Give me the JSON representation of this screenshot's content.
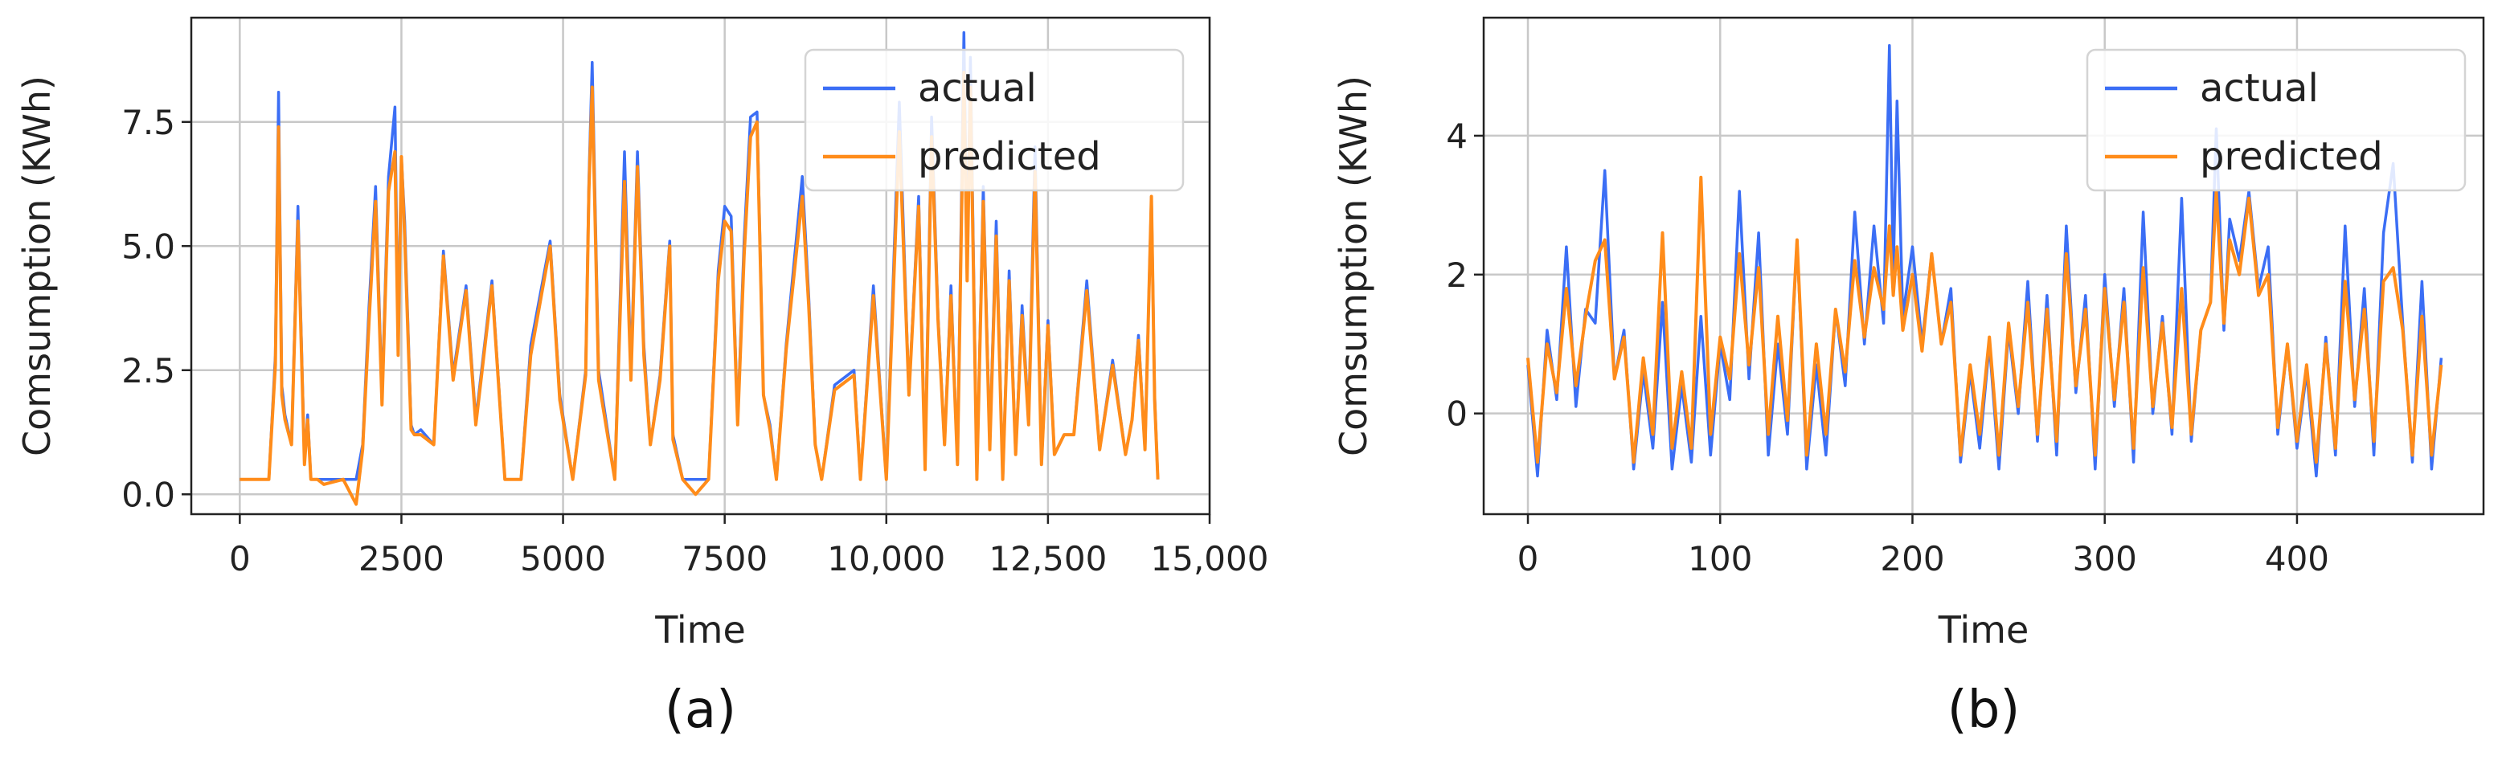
{
  "chart_data": [
    {
      "id": "a",
      "type": "line",
      "panel_label": "(a)",
      "title": "",
      "xlabel": "Time",
      "ylabel": "Comsumption (KWh)",
      "xlim": [
        -750,
        15000
      ],
      "ylim": [
        -0.4,
        9.6
      ],
      "xticks": [
        0,
        2500,
        5000,
        7500,
        10000,
        12500,
        15000
      ],
      "xtick_labels": [
        "0",
        "2500",
        "5000",
        "7500",
        "10,000",
        "12,500",
        "15,000"
      ],
      "yticks": [
        0.0,
        2.5,
        5.0,
        7.5
      ],
      "ytick_labels": [
        "0.0",
        "2.5",
        "5.0",
        "7.5"
      ],
      "grid": true,
      "legend_position": "top-right",
      "series": [
        {
          "name": "actual",
          "color": "#3b6ef5",
          "x": [
            0,
            450,
            550,
            600,
            650,
            700,
            800,
            900,
            1000,
            1050,
            1100,
            1200,
            1300,
            1600,
            1800,
            1900,
            2000,
            2100,
            2200,
            2300,
            2400,
            2450,
            2500,
            2550,
            2650,
            2700,
            2800,
            3000,
            3150,
            3300,
            3500,
            3650,
            3900,
            4100,
            4350,
            4500,
            4800,
            4950,
            5150,
            5350,
            5400,
            5450,
            5550,
            5800,
            5950,
            6050,
            6150,
            6250,
            6350,
            6500,
            6650,
            6700,
            6850,
            7050,
            7250,
            7400,
            7500,
            7600,
            7700,
            7800,
            7900,
            8000,
            8100,
            8200,
            8300,
            8450,
            8700,
            8800,
            8900,
            9000,
            9200,
            9500,
            9600,
            9800,
            10000,
            10200,
            10350,
            10500,
            10600,
            10700,
            10800,
            10900,
            11000,
            11100,
            11200,
            11250,
            11300,
            11400,
            11500,
            11600,
            11700,
            11800,
            11900,
            12000,
            12100,
            12200,
            12300,
            12400,
            12500,
            12600,
            12750,
            12900,
            13100,
            13300,
            13500,
            13700,
            13800,
            13900,
            14000,
            14100,
            14150,
            14200
          ],
          "y": [
            0.3,
            0.3,
            2.8,
            8.1,
            2.2,
            1.6,
            1.0,
            5.8,
            0.7,
            1.6,
            0.3,
            0.3,
            0.3,
            0.3,
            0.3,
            1.0,
            3.8,
            6.2,
            2.0,
            6.4,
            7.8,
            3.0,
            6.8,
            5.5,
            1.4,
            1.2,
            1.3,
            1.0,
            4.9,
            2.4,
            4.2,
            1.5,
            4.3,
            0.3,
            0.3,
            3.0,
            5.1,
            2.0,
            0.3,
            2.5,
            6.3,
            8.7,
            2.5,
            0.3,
            6.9,
            2.5,
            6.9,
            3.0,
            1.0,
            2.4,
            5.1,
            1.2,
            0.3,
            0.3,
            0.3,
            4.5,
            5.8,
            5.6,
            1.5,
            5.1,
            7.6,
            7.7,
            2.0,
            1.4,
            0.3,
            3.0,
            6.4,
            4.0,
            1.0,
            0.3,
            2.2,
            2.5,
            0.3,
            4.2,
            0.3,
            7.9,
            2.0,
            6.0,
            0.6,
            7.6,
            3.6,
            1.0,
            4.2,
            0.6,
            9.3,
            4.5,
            8.8,
            0.3,
            6.2,
            1.0,
            5.5,
            0.3,
            4.5,
            0.8,
            3.8,
            1.5,
            7.0,
            0.6,
            3.5,
            0.8,
            1.2,
            1.2,
            4.3,
            0.9,
            2.7,
            0.8,
            1.5,
            3.2,
            0.9,
            6.0,
            2.0,
            0.3
          ],
          "note": "approximate trace read off the figure"
        },
        {
          "name": "predicted",
          "color": "#ff8c1a",
          "x": [
            0,
            450,
            550,
            600,
            650,
            700,
            800,
            900,
            1000,
            1050,
            1100,
            1200,
            1300,
            1600,
            1800,
            1900,
            2000,
            2100,
            2200,
            2300,
            2400,
            2450,
            2500,
            2550,
            2650,
            2700,
            2800,
            3000,
            3150,
            3300,
            3500,
            3650,
            3900,
            4100,
            4350,
            4500,
            4800,
            4950,
            5150,
            5350,
            5400,
            5450,
            5550,
            5800,
            5950,
            6050,
            6150,
            6250,
            6350,
            6500,
            6650,
            6700,
            6850,
            7050,
            7250,
            7400,
            7500,
            7600,
            7700,
            7800,
            7900,
            8000,
            8100,
            8200,
            8300,
            8450,
            8700,
            8800,
            8900,
            9000,
            9200,
            9500,
            9600,
            9800,
            10000,
            10200,
            10350,
            10500,
            10600,
            10700,
            10800,
            10900,
            11000,
            11100,
            11200,
            11250,
            11300,
            11400,
            11500,
            11600,
            11700,
            11800,
            11900,
            12000,
            12100,
            12200,
            12300,
            12400,
            12500,
            12600,
            12750,
            12900,
            13100,
            13300,
            13500,
            13700,
            13800,
            13900,
            14000,
            14100,
            14150,
            14200
          ],
          "y": [
            0.3,
            0.3,
            2.6,
            7.4,
            2.0,
            1.5,
            1.0,
            5.5,
            0.6,
            1.5,
            0.3,
            0.3,
            0.2,
            0.3,
            -0.2,
            0.9,
            3.5,
            5.9,
            1.8,
            6.1,
            6.9,
            2.8,
            6.8,
            5.2,
            1.3,
            1.2,
            1.2,
            1.0,
            4.8,
            2.3,
            4.1,
            1.4,
            4.2,
            0.3,
            0.3,
            2.8,
            5.0,
            1.9,
            0.3,
            2.4,
            6.1,
            8.2,
            2.3,
            0.3,
            6.3,
            2.3,
            6.6,
            2.8,
            1.0,
            2.3,
            5.0,
            1.1,
            0.3,
            0.0,
            0.3,
            4.3,
            5.5,
            5.3,
            1.4,
            4.8,
            7.2,
            7.5,
            2.0,
            1.3,
            0.3,
            2.9,
            6.0,
            3.8,
            1.0,
            0.3,
            2.1,
            2.4,
            0.3,
            4.0,
            0.3,
            7.3,
            2.0,
            5.8,
            0.5,
            7.2,
            3.5,
            1.0,
            4.0,
            0.6,
            8.5,
            4.3,
            8.2,
            0.3,
            5.9,
            0.9,
            5.2,
            0.3,
            4.3,
            0.8,
            3.6,
            1.4,
            6.5,
            0.6,
            3.4,
            0.8,
            1.2,
            1.2,
            4.1,
            0.9,
            2.6,
            0.8,
            1.5,
            3.1,
            0.9,
            6.0,
            1.9,
            0.3
          ],
          "note": "approximate trace read off the figure"
        }
      ]
    },
    {
      "id": "b",
      "type": "line",
      "panel_label": "(b)",
      "title": "",
      "xlabel": "Time",
      "ylabel": "Comsumption (KWh)",
      "xlim": [
        -23,
        497
      ],
      "ylim": [
        -1.45,
        5.7
      ],
      "xticks": [
        0,
        100,
        200,
        300,
        400
      ],
      "xtick_labels": [
        "0",
        "100",
        "200",
        "300",
        "400"
      ],
      "yticks": [
        0,
        2,
        4
      ],
      "ytick_labels": [
        "0",
        "2",
        "4"
      ],
      "grid": true,
      "legend_position": "top-right",
      "series": [
        {
          "name": "actual",
          "color": "#3b6ef5",
          "x": [
            0,
            5,
            10,
            15,
            20,
            25,
            30,
            35,
            40,
            45,
            50,
            55,
            60,
            65,
            70,
            75,
            80,
            85,
            90,
            95,
            100,
            105,
            110,
            115,
            120,
            125,
            130,
            135,
            140,
            145,
            150,
            155,
            160,
            165,
            170,
            175,
            180,
            185,
            188,
            190,
            192,
            195,
            200,
            205,
            210,
            215,
            220,
            225,
            230,
            235,
            240,
            245,
            250,
            255,
            260,
            265,
            270,
            275,
            280,
            285,
            290,
            295,
            300,
            305,
            310,
            315,
            320,
            325,
            330,
            335,
            340,
            345,
            350,
            355,
            358,
            362,
            365,
            370,
            375,
            380,
            385,
            390,
            395,
            400,
            405,
            410,
            415,
            420,
            425,
            430,
            435,
            440,
            445,
            450,
            455,
            460,
            465,
            470,
            475
          ],
          "y": [
            0.7,
            -0.9,
            1.2,
            0.2,
            2.4,
            0.1,
            1.5,
            1.3,
            3.5,
            0.5,
            1.2,
            -0.8,
            0.6,
            -0.5,
            1.6,
            -0.8,
            0.4,
            -0.7,
            1.4,
            -0.6,
            1.0,
            0.2,
            3.2,
            0.5,
            2.6,
            -0.6,
            1.0,
            -0.3,
            2.5,
            -0.8,
            0.7,
            -0.6,
            1.5,
            0.4,
            2.9,
            1.0,
            2.7,
            1.3,
            5.3,
            2.0,
            4.5,
            1.4,
            2.4,
            1.0,
            2.3,
            1.0,
            1.8,
            -0.7,
            0.6,
            -0.5,
            1.0,
            -0.8,
            1.2,
            0.0,
            1.9,
            -0.4,
            1.7,
            -0.6,
            2.7,
            0.3,
            1.7,
            -0.8,
            2.0,
            0.1,
            1.8,
            -0.7,
            2.9,
            0.0,
            1.4,
            -0.3,
            3.1,
            -0.4,
            1.2,
            1.6,
            4.1,
            1.2,
            2.8,
            2.2,
            3.2,
            1.8,
            2.4,
            -0.3,
            1.0,
            -0.5,
            0.6,
            -0.9,
            1.1,
            -0.6,
            2.7,
            0.1,
            1.8,
            -0.6,
            2.6,
            3.6,
            1.3,
            -0.7,
            1.9,
            -0.8,
            0.8
          ],
          "note": "approximate trace read off the figure"
        },
        {
          "name": "predicted",
          "color": "#ff8c1a",
          "x": [
            0,
            5,
            10,
            15,
            20,
            25,
            30,
            35,
            40,
            45,
            50,
            55,
            60,
            65,
            70,
            75,
            80,
            85,
            90,
            95,
            100,
            105,
            110,
            115,
            120,
            125,
            130,
            135,
            140,
            145,
            150,
            155,
            160,
            165,
            170,
            175,
            180,
            185,
            188,
            190,
            192,
            195,
            200,
            205,
            210,
            215,
            220,
            225,
            230,
            235,
            240,
            245,
            250,
            255,
            260,
            265,
            270,
            275,
            280,
            285,
            290,
            295,
            300,
            305,
            310,
            315,
            320,
            325,
            330,
            335,
            340,
            345,
            350,
            355,
            358,
            362,
            365,
            370,
            375,
            380,
            385,
            390,
            395,
            400,
            405,
            410,
            415,
            420,
            425,
            430,
            435,
            440,
            445,
            450,
            455,
            460,
            465,
            470,
            475
          ],
          "y": [
            0.8,
            -0.7,
            1.0,
            0.3,
            1.8,
            0.4,
            1.4,
            2.2,
            2.5,
            0.5,
            1.1,
            -0.7,
            0.8,
            -0.3,
            2.6,
            -0.5,
            0.6,
            -0.5,
            3.4,
            -0.3,
            1.1,
            0.5,
            2.3,
            0.7,
            2.1,
            -0.3,
            1.4,
            -0.1,
            2.5,
            -0.6,
            1.0,
            -0.3,
            1.5,
            0.6,
            2.2,
            1.1,
            2.1,
            1.5,
            2.7,
            1.7,
            2.4,
            1.2,
            2.0,
            0.9,
            2.3,
            1.0,
            1.6,
            -0.6,
            0.7,
            -0.3,
            1.1,
            -0.6,
            1.3,
            0.1,
            1.6,
            -0.3,
            1.5,
            -0.4,
            2.3,
            0.4,
            1.5,
            -0.6,
            1.8,
            0.2,
            1.6,
            -0.5,
            2.1,
            0.1,
            1.3,
            -0.2,
            1.8,
            -0.3,
            1.2,
            1.6,
            3.2,
            1.3,
            2.5,
            2.0,
            3.1,
            1.7,
            2.0,
            -0.2,
            1.0,
            -0.4,
            0.7,
            -0.7,
            1.0,
            -0.5,
            1.9,
            0.2,
            1.5,
            -0.4,
            1.9,
            2.1,
            1.2,
            -0.6,
            1.4,
            -0.6,
            0.7
          ],
          "note": "approximate trace read off the figure"
        }
      ]
    }
  ]
}
